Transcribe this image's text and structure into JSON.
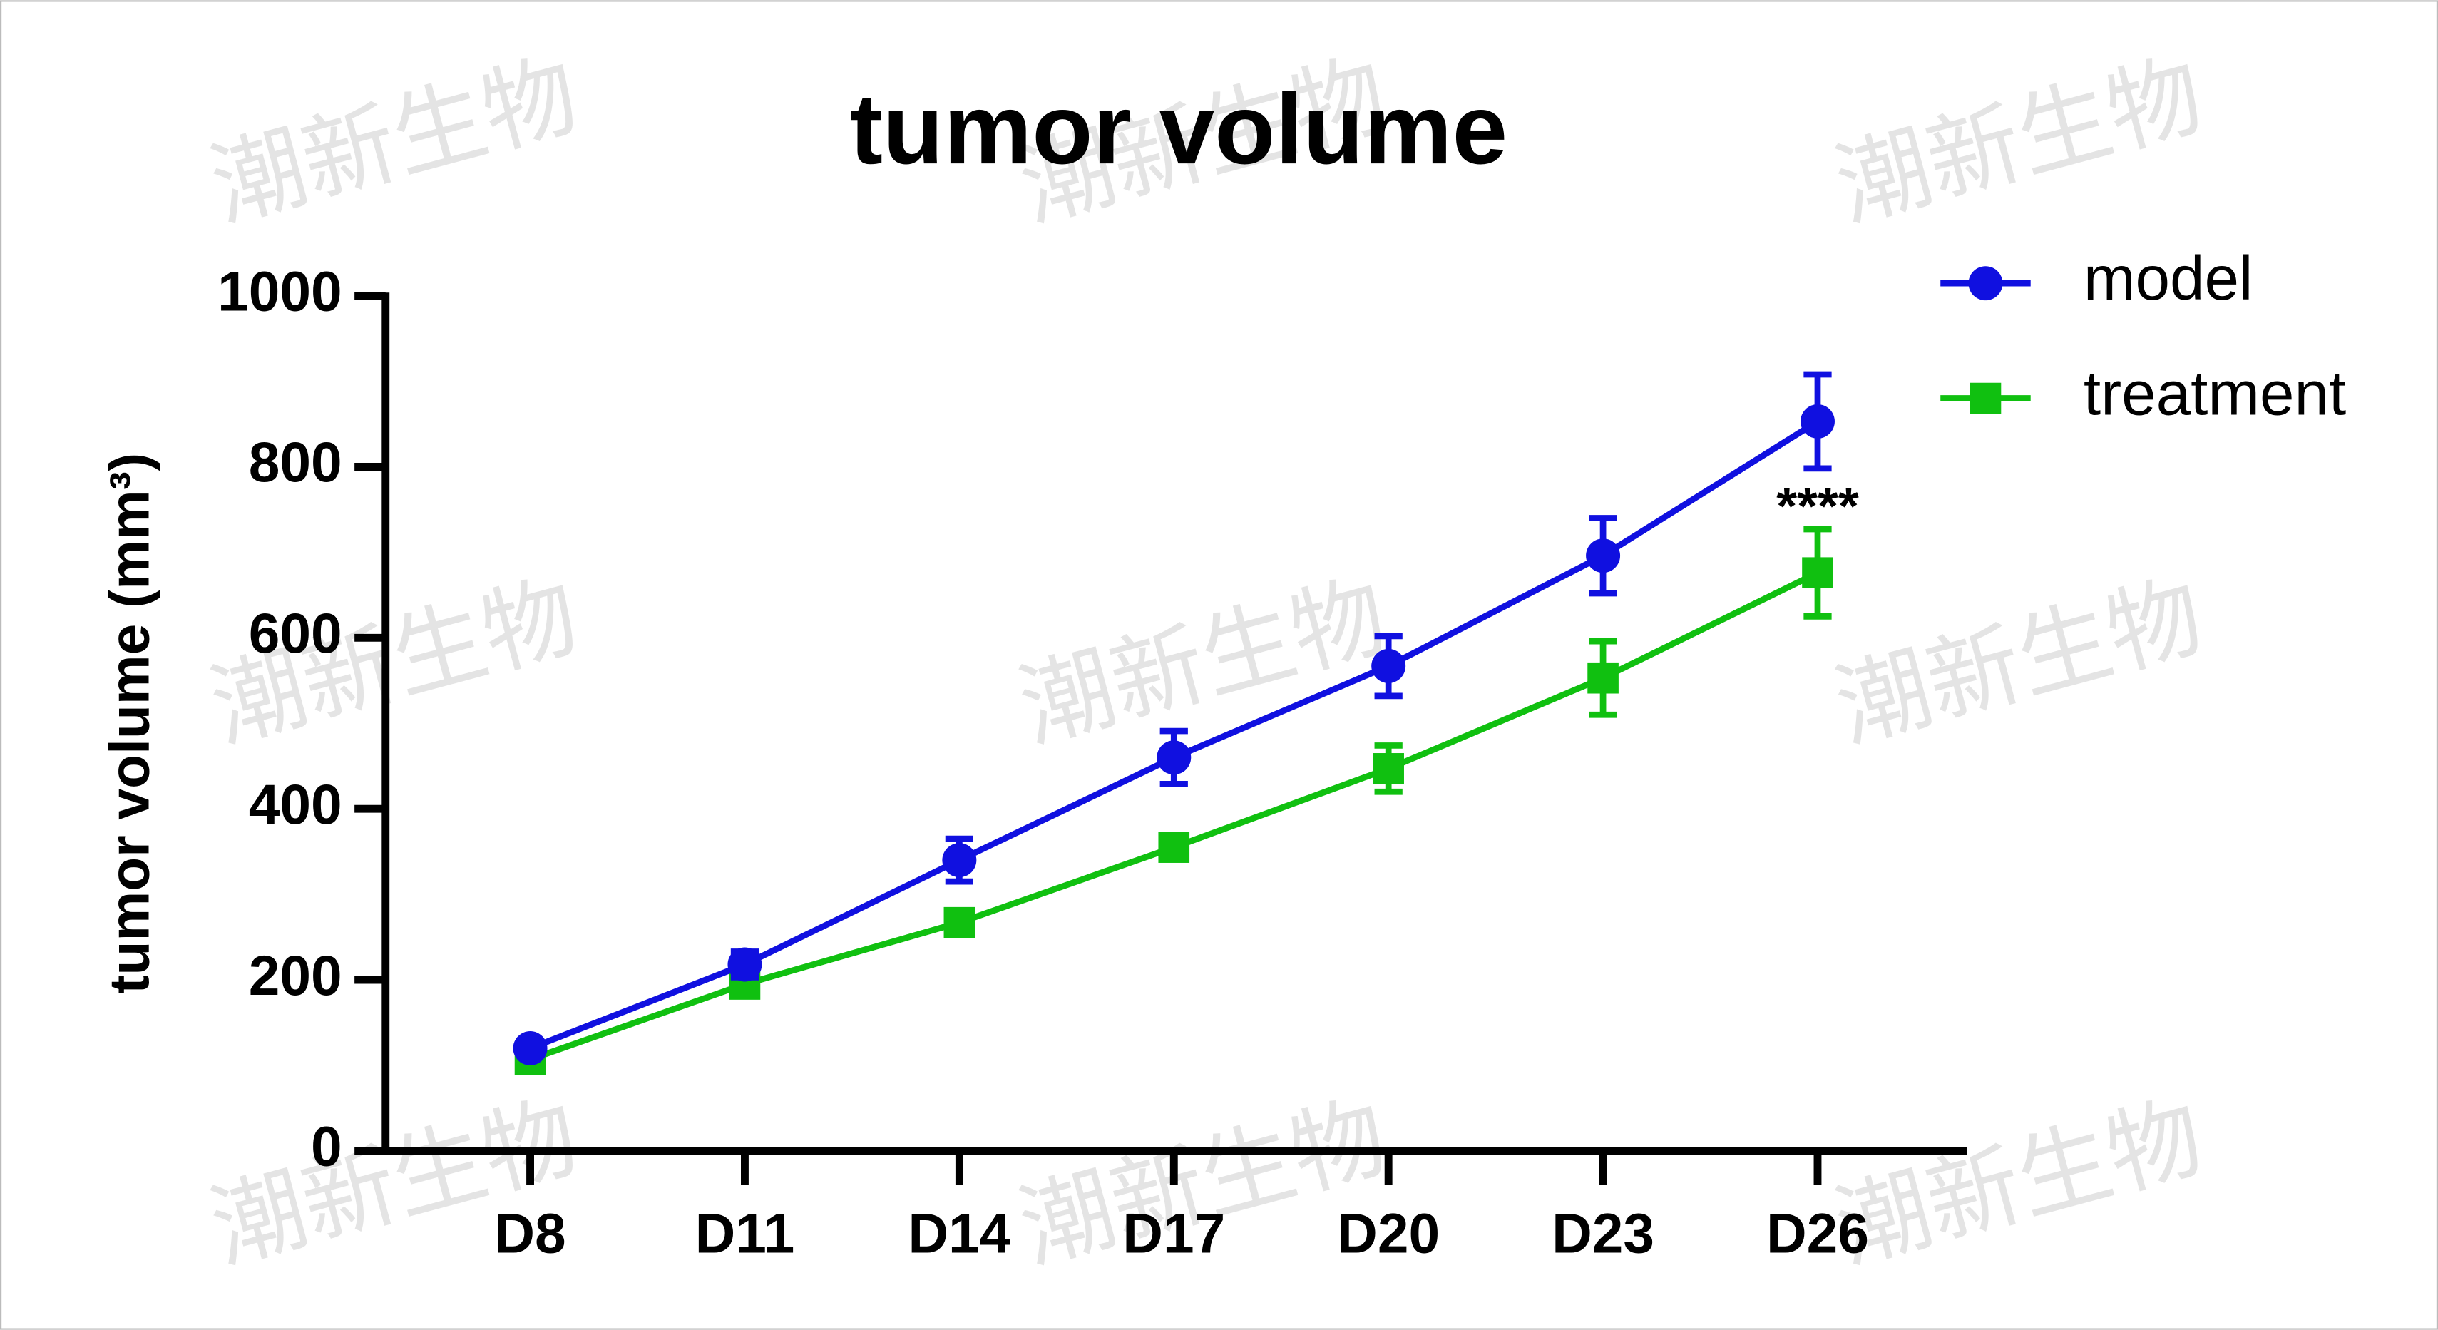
{
  "chart_data": {
    "type": "line",
    "title": "tumor volume",
    "y_label": "tumor volume (mm³)",
    "categories": [
      "D8",
      "D11",
      "D14",
      "D17",
      "D20",
      "D23",
      "D26"
    ],
    "series": [
      {
        "name": "model",
        "color": "#1010e0",
        "marker": "circle",
        "values": [
          120,
          218,
          340,
          460,
          567,
          696,
          853
        ],
        "errors": [
          5,
          15,
          25,
          31,
          35,
          44,
          55
        ]
      },
      {
        "name": "treatment",
        "color": "#10c010",
        "marker": "square",
        "values": [
          107,
          195,
          267,
          355,
          447,
          553,
          676
        ],
        "errors": [
          5,
          5,
          8,
          8,
          27,
          43,
          51
        ]
      }
    ],
    "annotations": [
      {
        "text": "****",
        "category": "D26"
      }
    ],
    "ylim": [
      0,
      1000
    ],
    "yticks": [
      0,
      200,
      400,
      600,
      800,
      1000
    ],
    "grid": false,
    "legend": "top-right"
  },
  "watermark": "潮新生物"
}
